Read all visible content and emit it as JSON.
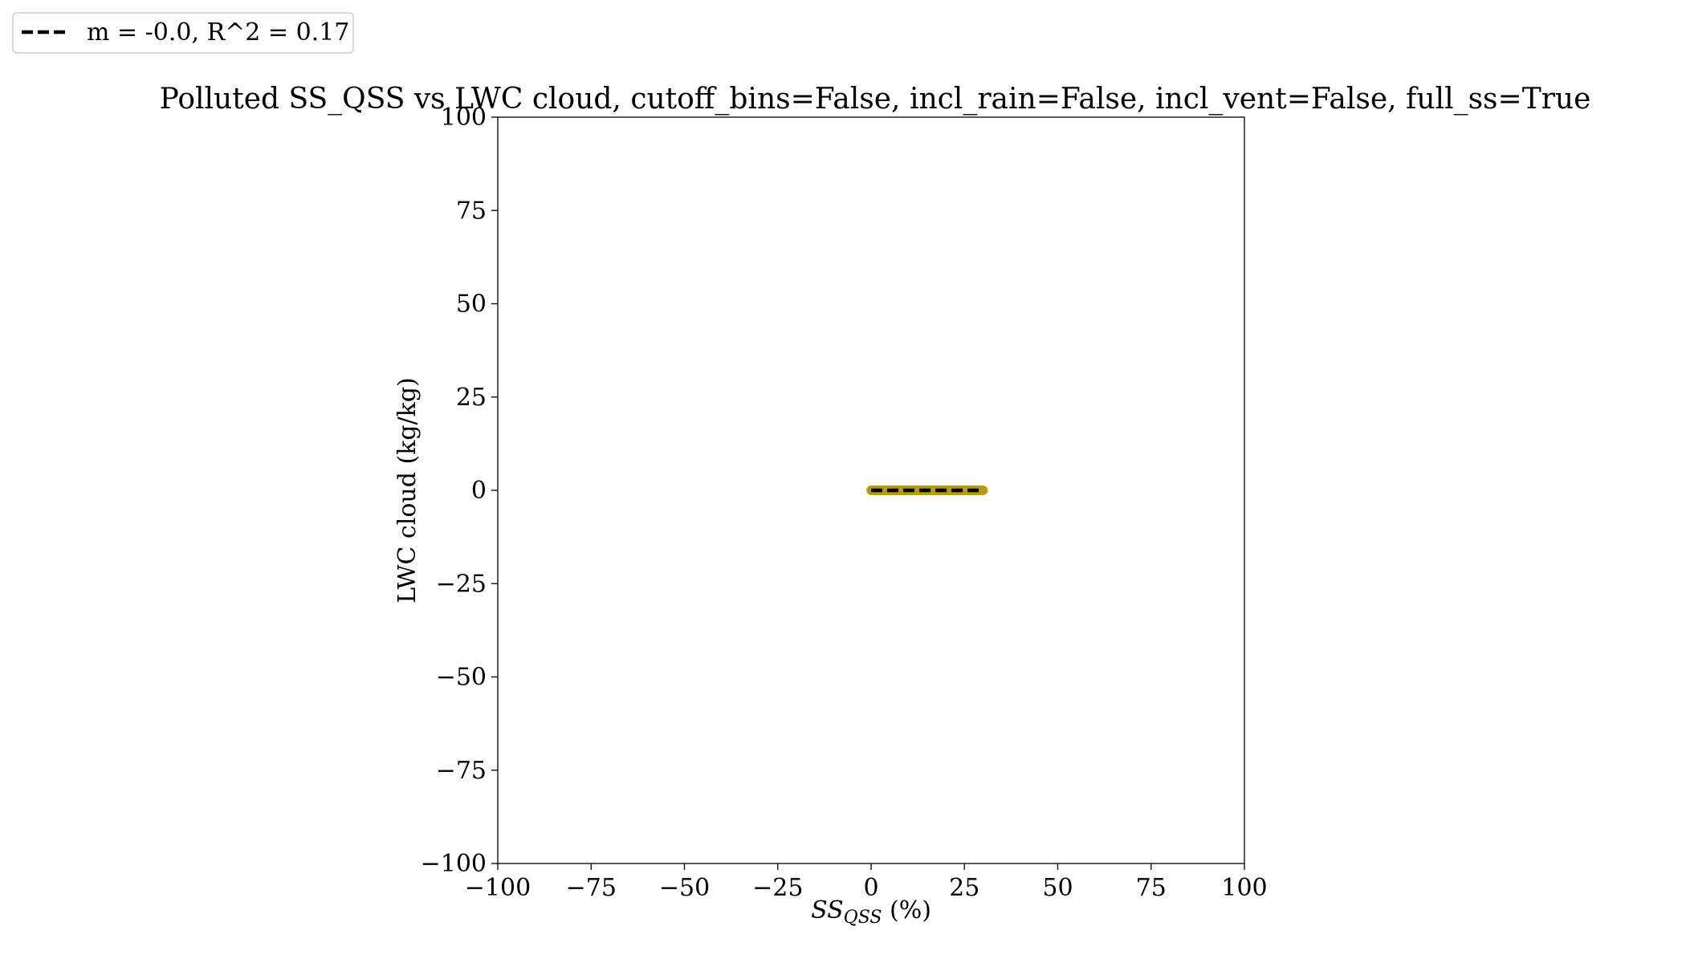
{
  "chart_data": {
    "type": "scatter",
    "title": "Polluted SS_QSS vs LWC cloud, cutoff_bins=False, incl_rain=False, incl_vent=False, full_ss=True",
    "xlabel_main": "SS",
    "xlabel_sub": "QSS",
    "xlabel_suffix": " (%)",
    "ylabel": "LWC cloud (kg/kg)",
    "xlim": [
      -100,
      100
    ],
    "ylim": [
      -100,
      100
    ],
    "x_ticks": [
      -100,
      -75,
      -50,
      -25,
      0,
      25,
      50,
      75,
      100
    ],
    "y_ticks": [
      -100,
      -75,
      -50,
      -25,
      0,
      25,
      50,
      75,
      100
    ],
    "x_tick_labels": [
      "−100",
      "−75",
      "−50",
      "−25",
      "0",
      "25",
      "50",
      "75",
      "100"
    ],
    "y_tick_labels": [
      "−100",
      "−75",
      "−50",
      "−25",
      "0",
      "25",
      "50",
      "75",
      "100"
    ],
    "grid": false,
    "legend_position": "top-left",
    "scatter_series": {
      "color": "#b59a0c",
      "x_range": [
        0,
        30
      ],
      "y": 0.0
    },
    "fit_line": {
      "label": "m = -0.0, R^2 = 0.17",
      "slope": -0.0,
      "r_squared": 0.17,
      "x": [
        0,
        30
      ],
      "y": [
        0,
        0
      ],
      "color": "#000000",
      "style": "dashed"
    }
  }
}
